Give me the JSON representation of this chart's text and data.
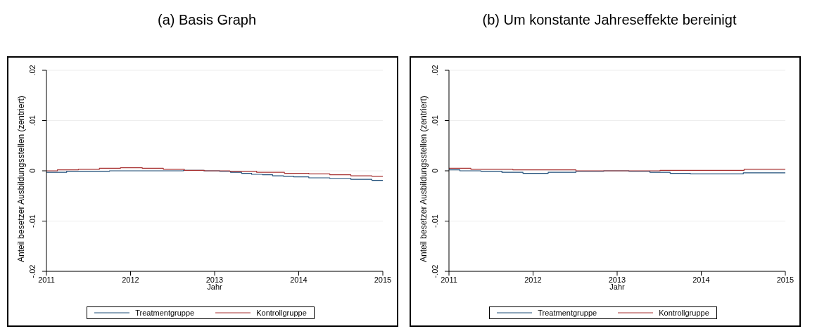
{
  "chart_data": [
    {
      "type": "step",
      "title": "(a) Basis Graph",
      "xlabel": "Jahr",
      "ylabel": "Anteil besetzer Ausbildungsstellen (zentriert)",
      "xlim": [
        2011,
        2015
      ],
      "ylim": [
        -0.02,
        0.02
      ],
      "xticks": [
        2011,
        2012,
        2013,
        2014,
        2015
      ],
      "yticks": [
        {
          "value": -0.02,
          "label": "-.02"
        },
        {
          "value": -0.01,
          "label": "-.01"
        },
        {
          "value": 0,
          "label": "0"
        },
        {
          "value": 0.01,
          "label": ".01"
        },
        {
          "value": 0.02,
          "label": ".02"
        }
      ],
      "grid": "y",
      "legend": "bottom",
      "line_style": "solid",
      "marker": "none",
      "series": [
        {
          "name": "Treatmentgruppe",
          "color": "#1f4e79",
          "x": [
            2011,
            2011.24,
            2011.75,
            2012.63,
            2012.87,
            2013.06,
            2013.19,
            2013.32,
            2013.44,
            2013.57,
            2013.69,
            2013.82,
            2013.94,
            2014.12,
            2014.37,
            2014.62,
            2014.87,
            2015
          ],
          "values": [
            -0.0003,
            -0.0001,
            0,
            0.0001,
            0,
            -0.0001,
            -0.0003,
            -0.0005,
            -0.0007,
            -0.0008,
            -0.001,
            -0.0011,
            -0.0012,
            -0.0014,
            -0.0015,
            -0.0017,
            -0.0019,
            -0.0019
          ]
        },
        {
          "name": "Kontrollgruppe",
          "color": "#a83232",
          "x": [
            2011,
            2011.13,
            2011.38,
            2011.63,
            2011.88,
            2012.14,
            2012.39,
            2012.64,
            2012.88,
            2013.18,
            2013.5,
            2013.83,
            2014.12,
            2014.37,
            2014.62,
            2014.87,
            2015
          ],
          "values": [
            0,
            0.0002,
            0.0003,
            0.0005,
            0.0006,
            0.0005,
            0.0003,
            0.0001,
            0,
            -0.0001,
            -0.0003,
            -0.0005,
            -0.0006,
            -0.0008,
            -0.001,
            -0.0011,
            -0.0011
          ]
        }
      ]
    },
    {
      "type": "step",
      "title": "(b) Um konstante Jahreseffekte bereinigt",
      "xlabel": "Jahr",
      "ylabel": "Anteil besetzer Ausbildungsstellen (zentriert)",
      "xlim": [
        2011,
        2015
      ],
      "ylim": [
        -0.02,
        0.02
      ],
      "xticks": [
        2011,
        2012,
        2013,
        2014,
        2015
      ],
      "yticks": [
        {
          "value": -0.02,
          "label": "-.02"
        },
        {
          "value": -0.01,
          "label": "-.01"
        },
        {
          "value": 0,
          "label": "0"
        },
        {
          "value": 0.01,
          "label": ".01"
        },
        {
          "value": 0.02,
          "label": ".02"
        }
      ],
      "grid": "y",
      "legend": "bottom",
      "line_style": "solid",
      "marker": "none",
      "series": [
        {
          "name": "Treatmentgruppe",
          "color": "#1f4e79",
          "x": [
            2011,
            2011.13,
            2011.38,
            2011.63,
            2011.88,
            2012.18,
            2012.51,
            2012.84,
            2013.14,
            2013.39,
            2013.63,
            2013.87,
            2014.5,
            2015
          ],
          "values": [
            0.0002,
            0,
            -0.0001,
            -0.0003,
            -0.0005,
            -0.0003,
            -0.0001,
            0,
            -0.0001,
            -0.0003,
            -0.0005,
            -0.0006,
            -0.0004,
            -0.0004
          ]
        },
        {
          "name": "Kontrollgruppe",
          "color": "#a83232",
          "x": [
            2011,
            2011.26,
            2011.76,
            2012.51,
            2013.51,
            2014.51,
            2015
          ],
          "values": [
            0.0005,
            0.0003,
            0.0002,
            0,
            0.0001,
            0.0003,
            0.0003
          ]
        }
      ]
    }
  ]
}
